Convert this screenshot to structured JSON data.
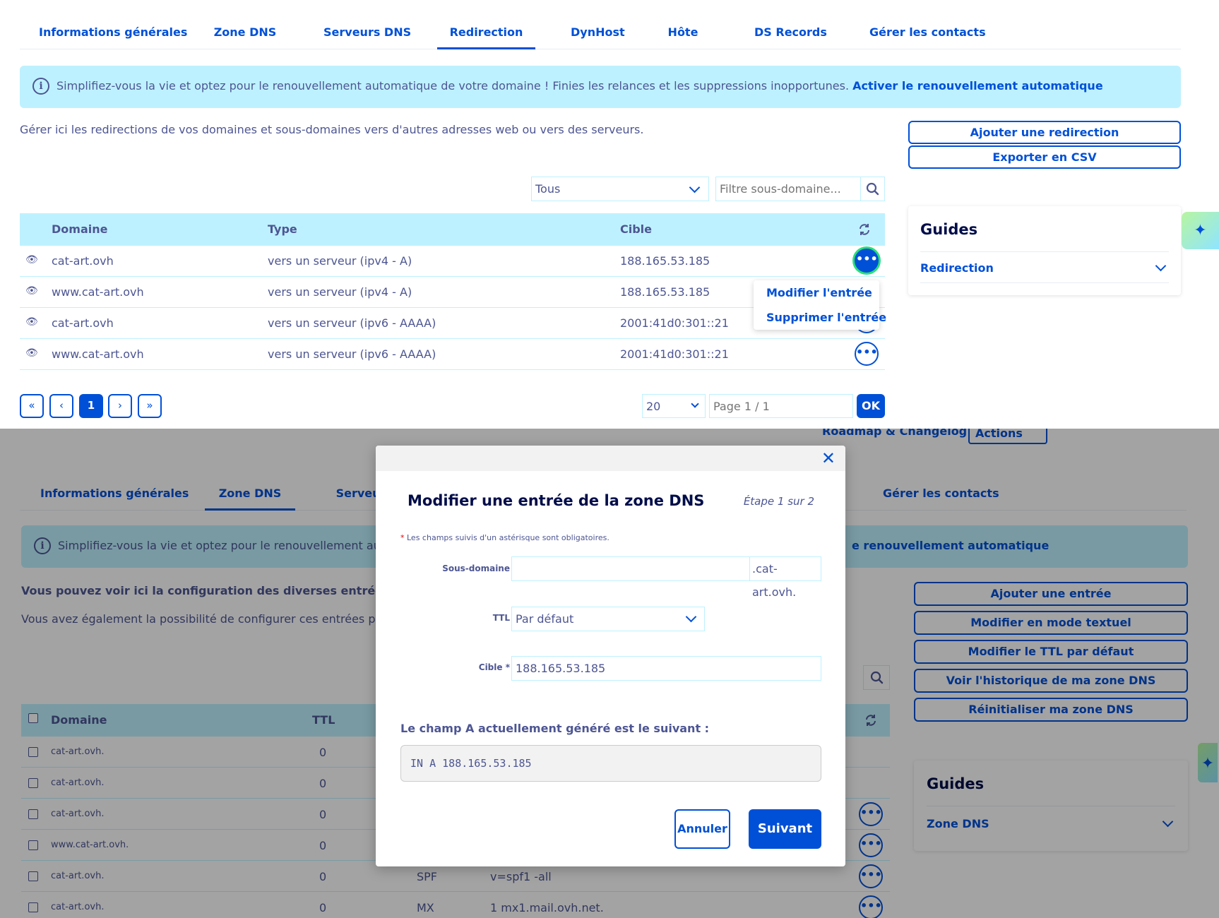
{
  "colors": {
    "primary": "#0050d7",
    "text": "#4d5693",
    "banner": "#bef1ff",
    "heading": "#000d49",
    "focus_ring": "#27e07a"
  },
  "top": {
    "tabs": [
      {
        "label": "Informations générales",
        "active": false
      },
      {
        "label": "Zone DNS",
        "active": false
      },
      {
        "label": "Serveurs DNS",
        "active": false
      },
      {
        "label": "Redirection",
        "active": true
      },
      {
        "label": "DynHost",
        "active": false
      },
      {
        "label": "Hôte",
        "active": false
      },
      {
        "label": "DS Records",
        "active": false
      },
      {
        "label": "Gérer les contacts",
        "active": false
      }
    ],
    "banner": {
      "icon": "info-icon",
      "text": "Simplifiez-vous la vie et optez pour le renouvellement automatique de votre domaine ! Finies les relances et les suppressions inopportunes. ",
      "link": "Activer le renouvellement automatique"
    },
    "description": "Gérer ici les redirections de vos domaines et sous-domaines vers d'autres adresses web ou vers des serveurs.",
    "actions": {
      "add": "Ajouter une redirection",
      "export": "Exporter en CSV"
    },
    "filter": {
      "type_selected": "Tous",
      "search_placeholder": "Filtre sous-domaine..."
    },
    "table": {
      "headers": [
        "Domaine",
        "Type",
        "Cible"
      ],
      "rows": [
        {
          "domain": "cat-art.ovh",
          "type": "vers un serveur (ipv4 - A)",
          "target": "188.165.53.185"
        },
        {
          "domain": "www.cat-art.ovh",
          "type": "vers un serveur (ipv4 - A)",
          "target": "188.165.53.185"
        },
        {
          "domain": "cat-art.ovh",
          "type": "vers un serveur (ipv6 - AAAA)",
          "target": "2001:41d0:301::21"
        },
        {
          "domain": "www.cat-art.ovh",
          "type": "vers un serveur (ipv6 - AAAA)",
          "target": "2001:41d0:301::21"
        }
      ]
    },
    "row_menu": {
      "edit": "Modifier l'entrée",
      "delete": "Supprimer l'entrée"
    },
    "pagination": {
      "first": "«",
      "prev": "‹",
      "current": "1",
      "next": "›",
      "last": "»",
      "page_size": "20",
      "page_placeholder": "Page 1 / 1",
      "ok": "OK"
    },
    "guides": {
      "title": "Guides",
      "item": "Redirection"
    }
  },
  "bottom": {
    "header_links": {
      "roadmap": "Roadmap & Changelog",
      "actions": "Actions"
    },
    "tabs": [
      {
        "label": "Informations générales",
        "active": false
      },
      {
        "label": "Zone DNS",
        "active": true
      },
      {
        "label": "Serveur",
        "active": false
      },
      {
        "label": "Gérer les contacts",
        "active": false
      }
    ],
    "banner": {
      "text_left": "Simplifiez-vous la vie et optez pour le renouvellement auton",
      "text_right": "e renouvellement automatique"
    },
    "desc_bold": "Vous pouvez voir ici la configuration des diverses entrées de vot",
    "desc_normal": "Vous avez également la possibilité de configurer ces entrées pour r",
    "actions": [
      "Ajouter une entrée",
      "Modifier en mode textuel",
      "Modifier le TTL par défaut",
      "Voir l'historique de ma zone DNS",
      "Réinitialiser ma zone DNS"
    ],
    "table": {
      "headers": [
        "Domaine",
        "TTL"
      ],
      "rows": [
        {
          "domain": "cat-art.ovh.",
          "ttl": "0",
          "type": "",
          "target": ""
        },
        {
          "domain": "cat-art.ovh.",
          "ttl": "0",
          "type": "",
          "target": ""
        },
        {
          "domain": "cat-art.ovh.",
          "ttl": "0",
          "type": "",
          "target": ""
        },
        {
          "domain": "www.cat-art.ovh.",
          "ttl": "0",
          "type": "",
          "target": ""
        },
        {
          "domain": "cat-art.ovh.",
          "ttl": "0",
          "type": "SPF",
          "target": "v=spf1 -all"
        },
        {
          "domain": "cat-art.ovh.",
          "ttl": "0",
          "type": "MX",
          "target": "1 mx1.mail.ovh.net."
        }
      ]
    },
    "guides": {
      "title": "Guides",
      "item": "Zone DNS"
    }
  },
  "modal": {
    "title": "Modifier une entrée de la zone DNS",
    "step": "Étape 1 sur 2",
    "required_note": "Les champs suivis d'un astérisque sont obligatoires.",
    "required_star": "*",
    "fields": {
      "subdomain_label": "Sous-domaine",
      "subdomain_value": "",
      "subdomain_suffix": ".cat-art.ovh.",
      "ttl_label": "TTL",
      "ttl_value": "Par défaut",
      "target_label": "Cible",
      "target_value": "188.165.53.185"
    },
    "generated_title": "Le champ A actuellement généré est le suivant :",
    "generated_value": "IN A 188.165.53.185",
    "cancel": "Annuler",
    "next": "Suivant"
  }
}
